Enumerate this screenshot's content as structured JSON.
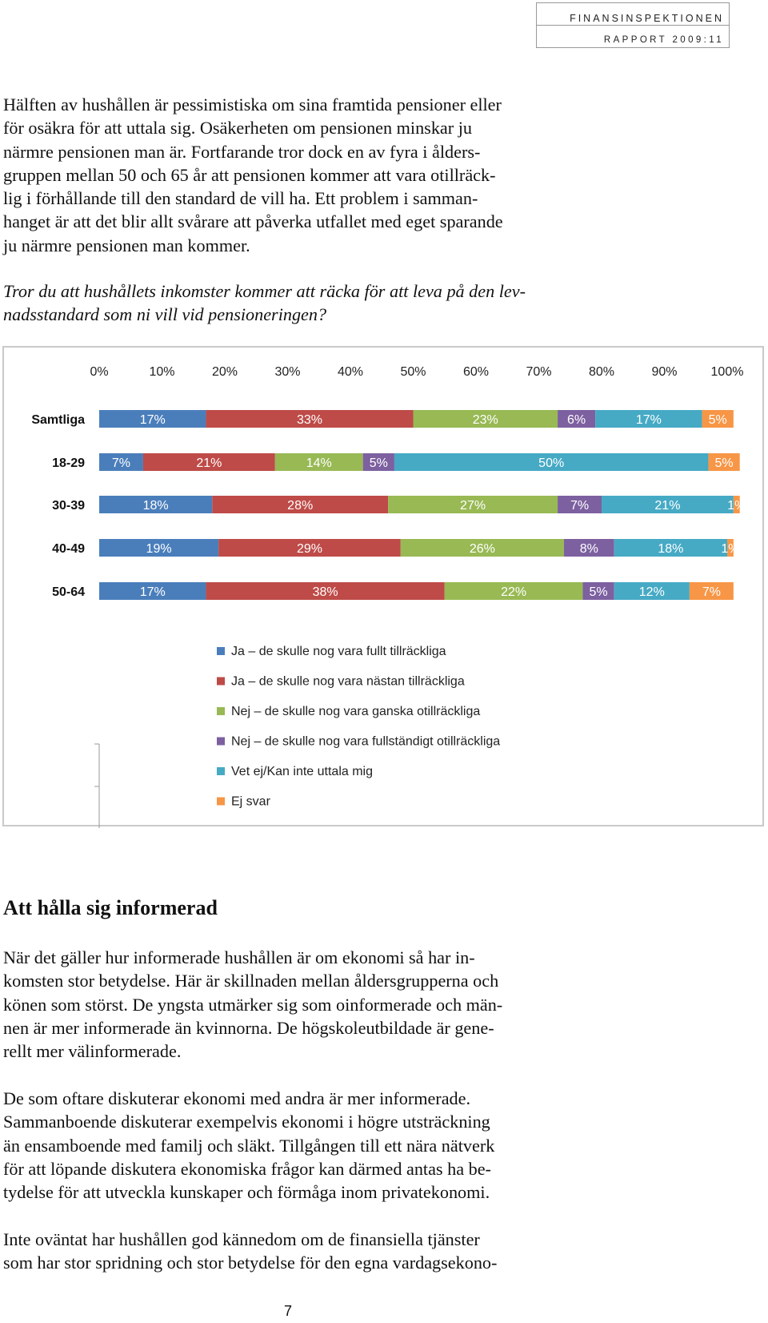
{
  "header": {
    "org": "FINANSINSPEKTIONEN",
    "report": "RAPPORT 2009:11"
  },
  "para1": [
    "Hälften av hushållen är pessimistiska om sina framtida pensioner eller",
    "för osäkra för att uttala sig. Osäkerheten om pensionen minskar ju",
    "närmre pensionen man är. Fortfarande tror dock en av fyra i ålders-",
    "gruppen mellan 50 och 65 år att pensionen kommer att vara otillräck-",
    "lig i förhållande till den standard de vill ha. Ett problem i samman-",
    "hanget är att det blir allt svårare att påverka utfallet med eget sparande",
    "ju närmre pensionen man kommer."
  ],
  "question": [
    "Tror du att hushållets inkomster kommer att räcka för att leva på den lev-",
    "nadsstandard som ni vill vid pensioneringen?"
  ],
  "chart_data": {
    "type": "bar",
    "orientation": "horizontal-stacked-100",
    "xticks": [
      "0%",
      "10%",
      "20%",
      "30%",
      "40%",
      "50%",
      "60%",
      "70%",
      "80%",
      "90%",
      "100%"
    ],
    "xlim": [
      0,
      100
    ],
    "categories": [
      "Samtliga",
      "18-29",
      "30-39",
      "40-49",
      "50-64"
    ],
    "series": [
      {
        "name": "Ja – de skulle nog vara fullt tillräckliga",
        "color": "#4a7ebb",
        "values": [
          17,
          7,
          18,
          19,
          17
        ]
      },
      {
        "name": "Ja – de skulle nog vara nästan tillräckliga",
        "color": "#be4b48",
        "values": [
          33,
          21,
          28,
          29,
          38
        ]
      },
      {
        "name": "Nej – de skulle nog vara ganska otillräckliga",
        "color": "#98b954",
        "values": [
          23,
          14,
          27,
          26,
          22
        ]
      },
      {
        "name": "Nej – de skulle nog vara fullständigt otillräckliga",
        "color": "#7d60a0",
        "values": [
          6,
          5,
          7,
          8,
          5
        ]
      },
      {
        "name": "Vet ej/Kan inte uttala mig",
        "color": "#46aac5",
        "values": [
          17,
          50,
          21,
          18,
          12
        ]
      },
      {
        "name": "Ej svar",
        "color": "#f79646",
        "values": [
          5,
          5,
          1,
          1,
          7
        ]
      }
    ],
    "labels": [
      [
        "17%",
        "33%",
        "23%",
        "6%",
        "17%",
        "5%"
      ],
      [
        "7%",
        "21%",
        "14%",
        "5%",
        "50%",
        "5%"
      ],
      [
        "18%",
        "28%",
        "27%",
        "7%",
        "21%",
        "1%"
      ],
      [
        "19%",
        "29%",
        "26%",
        "8%",
        "18%",
        "1%"
      ],
      [
        "17%",
        "38%",
        "22%",
        "5%",
        "12%",
        "7%"
      ]
    ],
    "legend_position": "bottom"
  },
  "heading": "Att hålla sig informerad",
  "para2": [
    "När det gäller hur informerade hushållen är om ekonomi så har in-",
    "komsten stor betydelse. Här är skillnaden mellan åldersgrupperna och",
    "könen som störst. De yngsta utmärker sig som oinformerade och män-",
    "nen är mer informerade än kvinnorna. De högskoleutbildade är gene-",
    "rellt mer välinformerade."
  ],
  "para3": [
    "De som oftare diskuterar ekonomi med andra är mer informerade.",
    "Sammanboende diskuterar exempelvis ekonomi i högre utsträckning",
    "än ensamboende med familj och släkt. Tillgången till ett nära nätverk",
    "för att löpande diskutera ekonomiska frågor kan därmed  antas ha be-",
    "tydelse för att utveckla kunskaper och förmåga inom privatekonomi."
  ],
  "para4": [
    "Inte oväntat har hushållen god kännedom om de finansiella tjänster",
    "som har stor spridning och stor betydelse för den egna vardagsekono-"
  ],
  "page_number": "7"
}
